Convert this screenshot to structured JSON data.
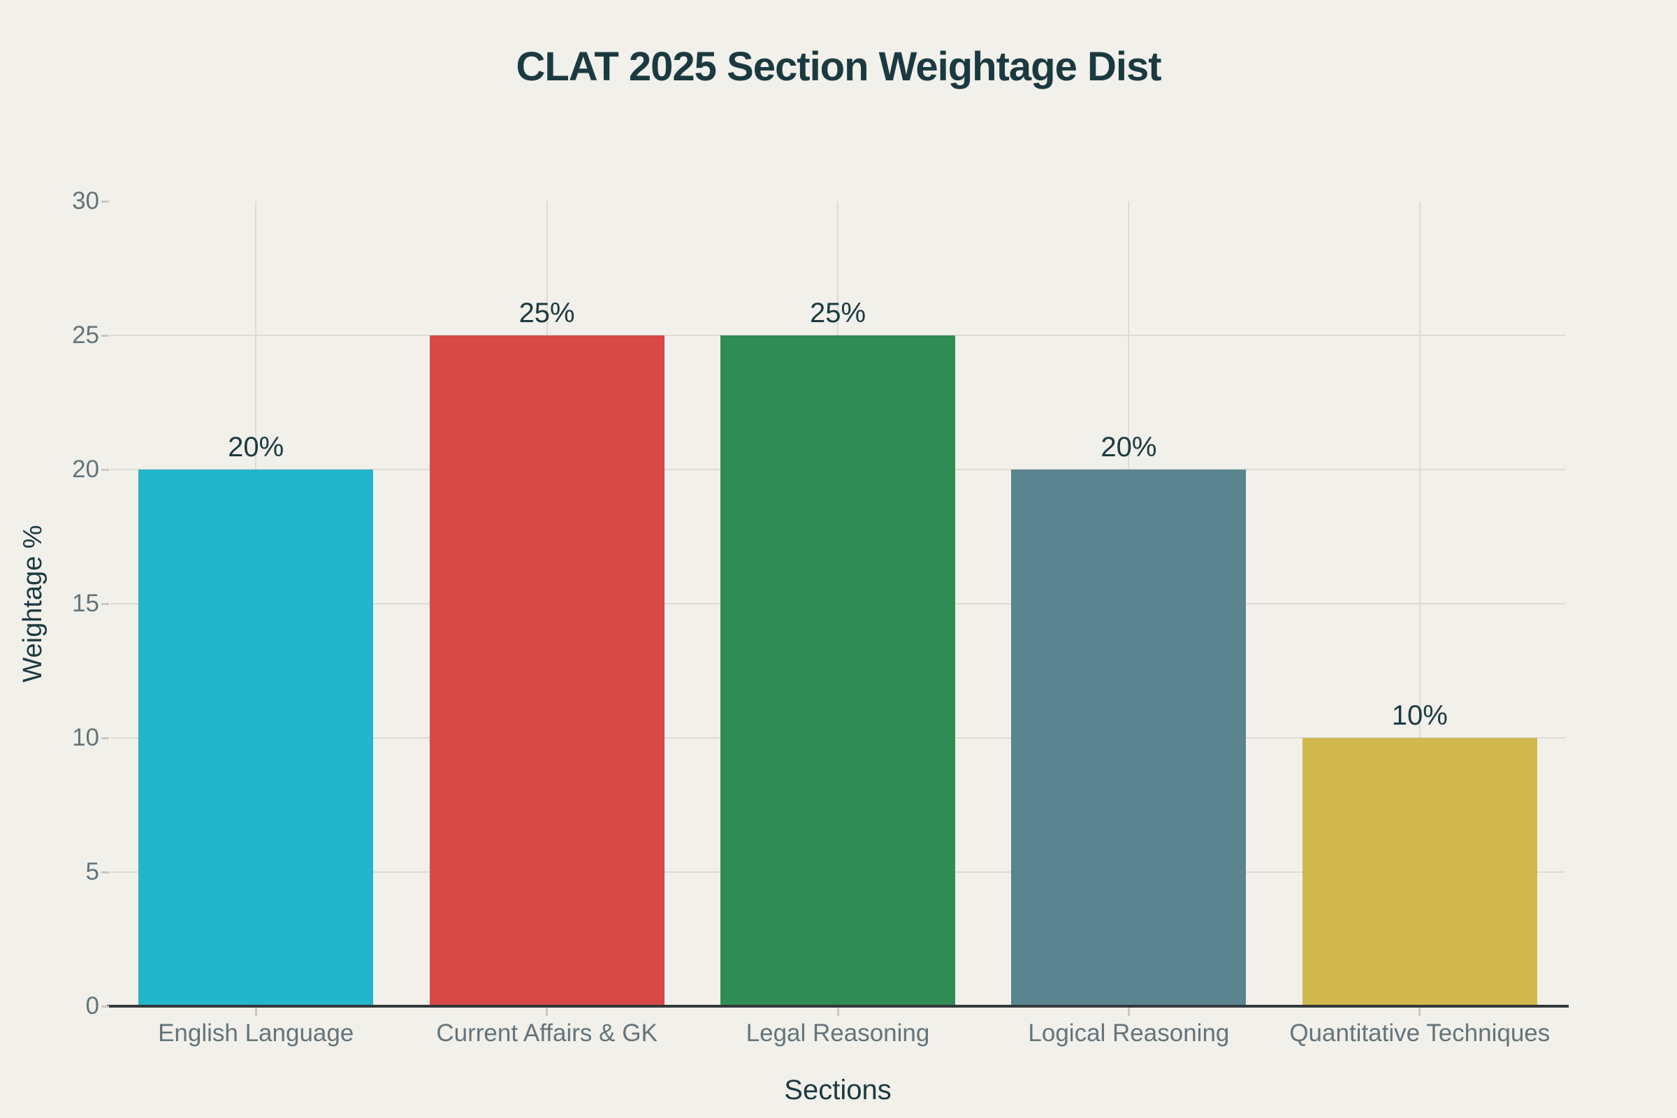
{
  "chart_data": {
    "type": "bar",
    "title": "CLAT 2025 Section Weightage Dist",
    "xlabel": "Sections",
    "ylabel": "Weightage %",
    "categories": [
      "English Language",
      "Current Affairs & GK",
      "Legal Reasoning",
      "Logical Reasoning",
      "Quantitative Techniques"
    ],
    "values": [
      20,
      25,
      25,
      20,
      10
    ],
    "value_labels": [
      "20%",
      "25%",
      "25%",
      "20%",
      "10%"
    ],
    "bar_colors": [
      "#23b5c9",
      "#d84846",
      "#2f8c54",
      "#5a8490",
      "#d0b84e"
    ],
    "ylim": [
      0,
      30
    ],
    "yticks": [
      0,
      5,
      10,
      15,
      20,
      25,
      30
    ],
    "ytick_labels": [
      "0",
      "5",
      "10",
      "15",
      "20",
      "25",
      "30"
    ],
    "grid": "horizontal lines at 5-25, vertical line at each category center",
    "legend_position": "none"
  },
  "colors": {
    "background": "#f1f0ea",
    "title_text": "#1b3a40",
    "axis_title_text": "#1b3a40",
    "value_label_text": "#1b3a40",
    "tick_label_text": "#64747a",
    "gridline": "#dcdbd4",
    "tick_mark": "#c9c8c2",
    "axis_line": "#32383a"
  }
}
